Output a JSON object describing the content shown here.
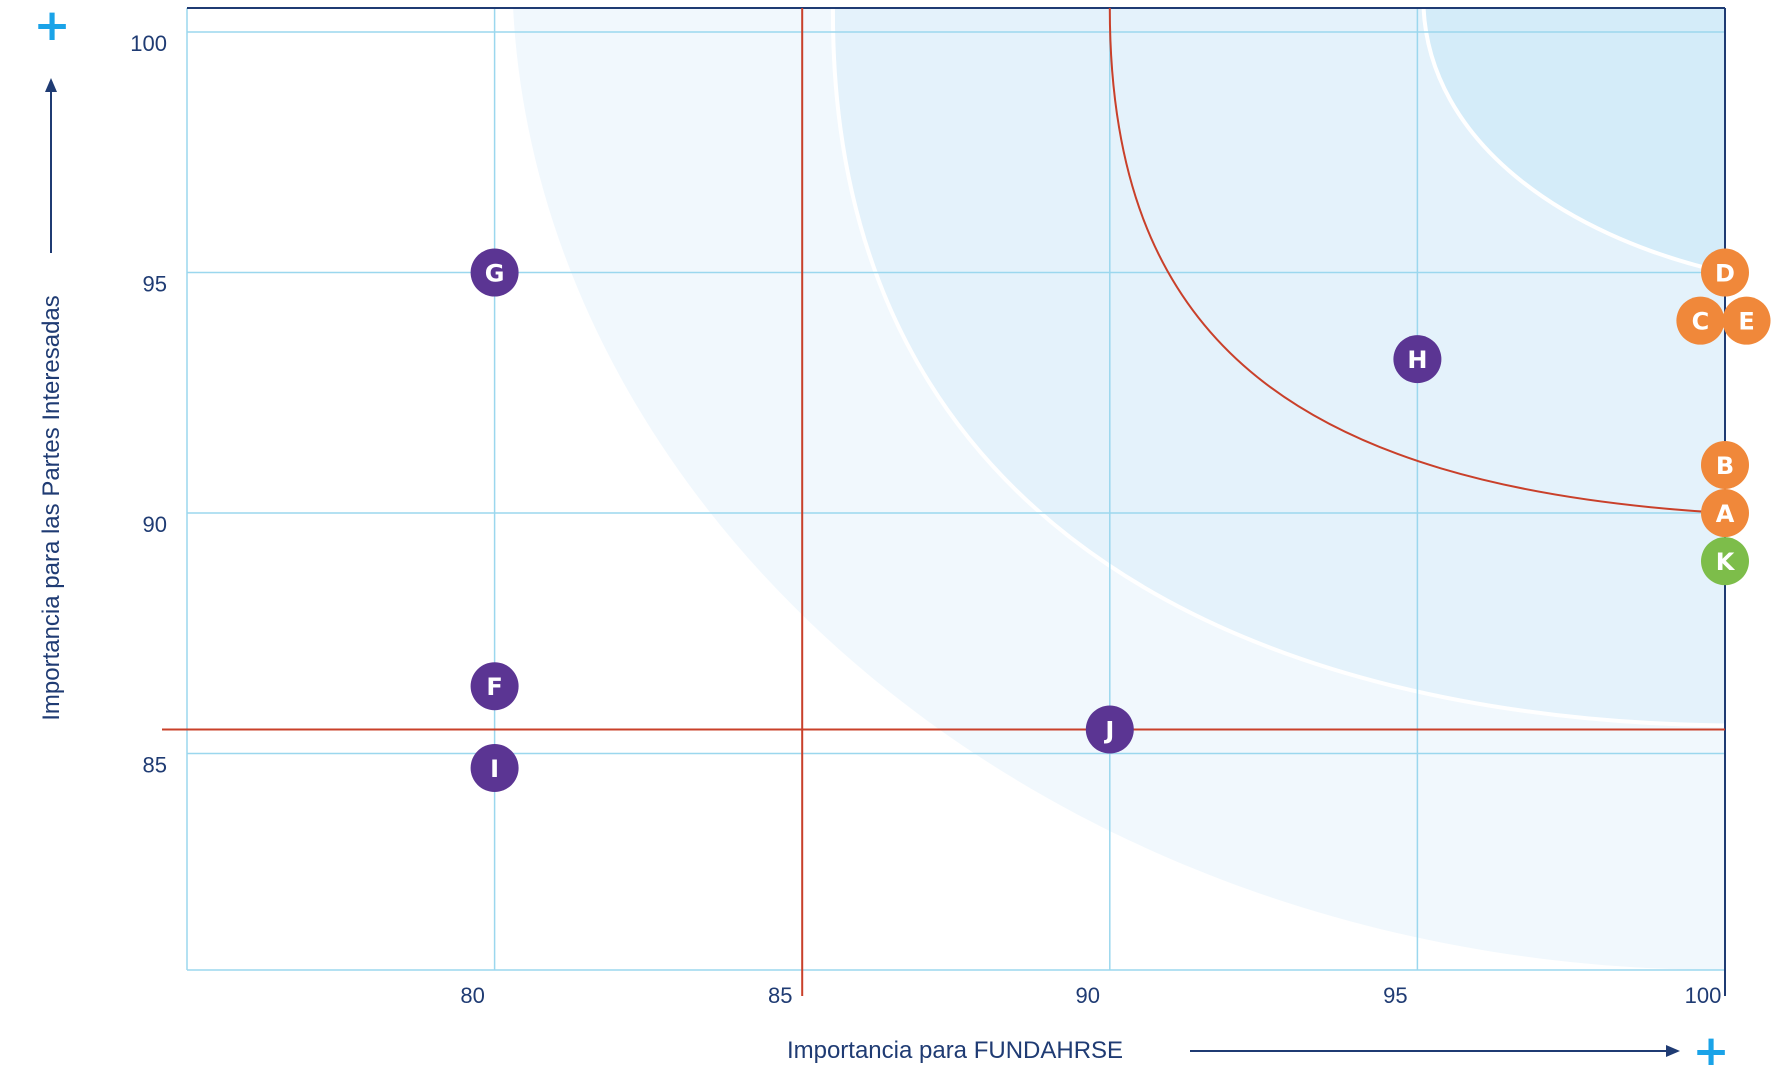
{
  "chart_data": {
    "type": "scatter",
    "xlabel": "Importancia para FUNDAHRSE",
    "ylabel": "Importancia para las Partes Interesadas",
    "xlim": [
      75,
      100
    ],
    "ylim": [
      80.5,
      100.5
    ],
    "xticks": [
      "80",
      "85",
      "90",
      "95",
      "100"
    ],
    "yticks": [
      "85",
      "90",
      "95",
      "100"
    ],
    "threshold_x": 85,
    "threshold_y": 85.5,
    "grid": true,
    "axis_plus_label": "+",
    "points": [
      {
        "label": "A",
        "x": 100,
        "y": 90.0,
        "group": "orange"
      },
      {
        "label": "B",
        "x": 100,
        "y": 91.0,
        "group": "orange"
      },
      {
        "label": "C",
        "x": 99.6,
        "y": 94.0,
        "group": "orange"
      },
      {
        "label": "D",
        "x": 100,
        "y": 95.0,
        "group": "orange"
      },
      {
        "label": "E",
        "x": 100.35,
        "y": 94.0,
        "group": "orange"
      },
      {
        "label": "F",
        "x": 80,
        "y": 86.4,
        "group": "purple"
      },
      {
        "label": "G",
        "x": 80,
        "y": 95.0,
        "group": "purple"
      },
      {
        "label": "H",
        "x": 95,
        "y": 93.2,
        "group": "purple"
      },
      {
        "label": "I",
        "x": 80,
        "y": 84.7,
        "group": "purple"
      },
      {
        "label": "J",
        "x": 90,
        "y": 85.5,
        "group": "purple"
      },
      {
        "label": "K",
        "x": 100,
        "y": 89.0,
        "group": "green"
      }
    ],
    "colors": {
      "orange": "#f0883a",
      "purple": "#5b3593",
      "green": "#7dbd4a",
      "k_text": "#1f3b73",
      "grid": "#9bd7ee",
      "threshold": "#c9402a",
      "axis": "#1f3b73",
      "zone_light": "#f1f8fd",
      "zone_mid": "#e4f2fb",
      "zone_dark": "#d4ecf9",
      "plus": "#1aa3e8"
    }
  }
}
